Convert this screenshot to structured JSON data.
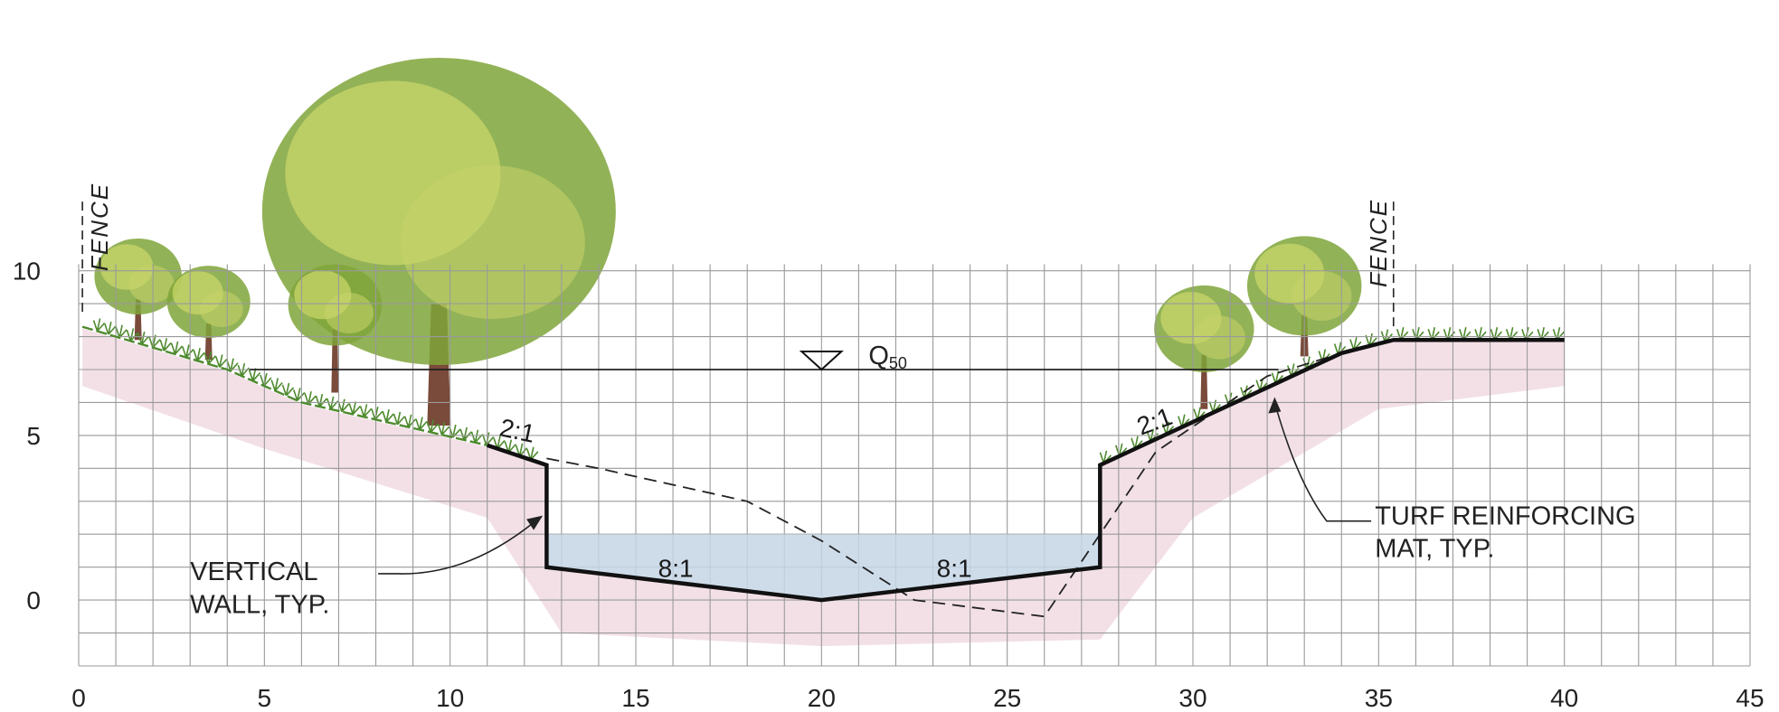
{
  "x_axis": {
    "min": 0,
    "max": 45,
    "step": 1,
    "label_step": 5,
    "tick_labels": [
      "0",
      "5",
      "10",
      "15",
      "20",
      "25",
      "30",
      "35",
      "40",
      "45"
    ]
  },
  "y_axis": {
    "min": -2,
    "max": 10,
    "step": 1,
    "tick_labels": [
      "0",
      "5",
      "10"
    ]
  },
  "grid": true,
  "water_level": {
    "label": "Q",
    "subscript": "50",
    "elevation": 7.0
  },
  "fence_label": "FENCE",
  "fences": [
    {
      "x": 0.1
    },
    {
      "x": 35.4
    }
  ],
  "slopes": {
    "left_bank": "2:1",
    "right_bank": "2:1",
    "left_invert": "8:1",
    "right_invert": "8:1"
  },
  "callouts": {
    "vertical_wall": [
      "VERTICAL",
      "WALL, TYP."
    ],
    "turf_mat": [
      "TURF REINFORCING",
      "MAT, TYP."
    ]
  },
  "proposed_section": [
    [
      0.1,
      8.3
    ],
    [
      1.0,
      8.0
    ],
    [
      4.0,
      7.0
    ],
    [
      6.0,
      6.0
    ],
    [
      11.0,
      4.7
    ],
    [
      12.6,
      4.1
    ],
    [
      12.6,
      1.0
    ],
    [
      20.0,
      0.0
    ],
    [
      27.5,
      1.0
    ],
    [
      27.5,
      4.1
    ],
    [
      34.0,
      7.5
    ],
    [
      35.4,
      7.9
    ],
    [
      40.0,
      7.9
    ]
  ],
  "existing_profile": [
    [
      12.6,
      4.3
    ],
    [
      14.0,
      4.0
    ],
    [
      18.0,
      3.0
    ],
    [
      20.0,
      1.8
    ],
    [
      22.5,
      0.0
    ],
    [
      26.0,
      -0.5
    ],
    [
      27.5,
      2.0
    ],
    [
      29.0,
      4.5
    ],
    [
      32.0,
      6.8
    ],
    [
      34.0,
      7.5
    ]
  ],
  "water_fill": {
    "x_start": 12.6,
    "x_end": 27.5,
    "elevation": 2.0
  },
  "colors": {
    "grid_line": "#9a9a9a",
    "section_line": "#111111",
    "existing_line": "#222222",
    "water": "#c6d6e6",
    "ground_shade": "#efd6df",
    "grass": "#4e8a2e",
    "foliage_dark": "#7fa53a",
    "foliage_light": "#c8d56a",
    "trunk": "#7a4a3a",
    "trunk_accent": "#b0356a"
  }
}
